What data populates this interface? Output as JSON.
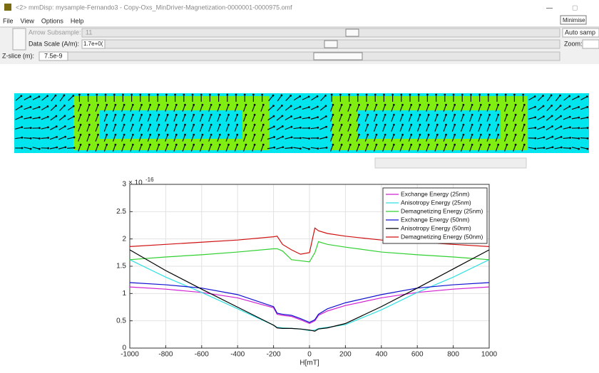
{
  "window": {
    "title": "<2> mmDisp: mysample-Fernando3 - Copy-Oxs_MinDriver-Magnetization-0000001-0000975.omf",
    "tooltip": "Minimise",
    "menu": [
      "File",
      "View",
      "Options",
      "Help"
    ],
    "arrow_subsample_label": "Arrow Subsample:",
    "arrow_subsample_value": "11",
    "data_scale_label": "Data Scale (A/m):",
    "data_scale_value": "1.7e+0(",
    "z_slice_label": "Z-slice (m):",
    "z_slice_value": "7.5e-9",
    "auto_sample_label": "Auto samp",
    "zoom_label": "Zoom:"
  },
  "chart_data": {
    "type": "line",
    "xlabel": "H[mT]",
    "y_multiplier": {
      "base": "× 10",
      "exponent": "-16"
    },
    "x": [
      -1000,
      -800,
      -600,
      -400,
      -200,
      -180,
      -150,
      -100,
      -50,
      0,
      30,
      50,
      100,
      200,
      400,
      600,
      800,
      1000
    ],
    "series": [
      {
        "name": "Exchange Energy (25nm)",
        "color": "#d020d0",
        "values": [
          1.12,
          1.08,
          1.02,
          0.92,
          0.74,
          0.62,
          0.6,
          0.58,
          0.52,
          0.45,
          0.5,
          0.6,
          0.68,
          0.78,
          0.92,
          1.02,
          1.08,
          1.12
        ]
      },
      {
        "name": "Anisotropy Energy (25nm)",
        "color": "#30e0e0",
        "values": [
          1.62,
          1.3,
          1.02,
          0.72,
          0.42,
          0.38,
          0.37,
          0.36,
          0.35,
          0.32,
          0.33,
          0.36,
          0.38,
          0.43,
          0.7,
          1.02,
          1.3,
          1.62
        ]
      },
      {
        "name": "Demagnetizing Energy (25nm)",
        "color": "#30d030",
        "values": [
          1.62,
          1.67,
          1.71,
          1.76,
          1.82,
          1.82,
          1.78,
          1.62,
          1.6,
          1.58,
          1.75,
          1.95,
          1.9,
          1.85,
          1.76,
          1.71,
          1.67,
          1.62
        ]
      },
      {
        "name": "Exchange Energy (50nm)",
        "color": "#1010d0",
        "values": [
          1.2,
          1.16,
          1.1,
          0.98,
          0.76,
          0.64,
          0.62,
          0.6,
          0.54,
          0.47,
          0.52,
          0.62,
          0.72,
          0.83,
          0.98,
          1.1,
          1.16,
          1.2
        ]
      },
      {
        "name": "Anisotropy Energy (50nm)",
        "color": "#000000",
        "values": [
          1.8,
          1.42,
          1.08,
          0.75,
          0.42,
          0.37,
          0.36,
          0.36,
          0.35,
          0.33,
          0.31,
          0.35,
          0.37,
          0.45,
          0.76,
          1.1,
          1.45,
          1.8
        ]
      },
      {
        "name": "Demagnetizing Energy (50nm)",
        "color": "#d01010",
        "values": [
          1.86,
          1.9,
          1.94,
          1.98,
          2.04,
          2.05,
          1.9,
          1.8,
          1.72,
          1.75,
          2.2,
          2.15,
          2.1,
          2.05,
          1.98,
          1.94,
          1.9,
          1.86
        ]
      }
    ],
    "xlim": [
      -1000,
      1000
    ],
    "xticks": [
      -1000,
      -800,
      -600,
      -400,
      -200,
      0,
      200,
      400,
      600,
      800,
      1000
    ],
    "ylim": [
      0,
      3
    ],
    "yticks": [
      0,
      0.5,
      1,
      1.5,
      2,
      2.5,
      3
    ],
    "grid": true,
    "legend": "top-right"
  }
}
